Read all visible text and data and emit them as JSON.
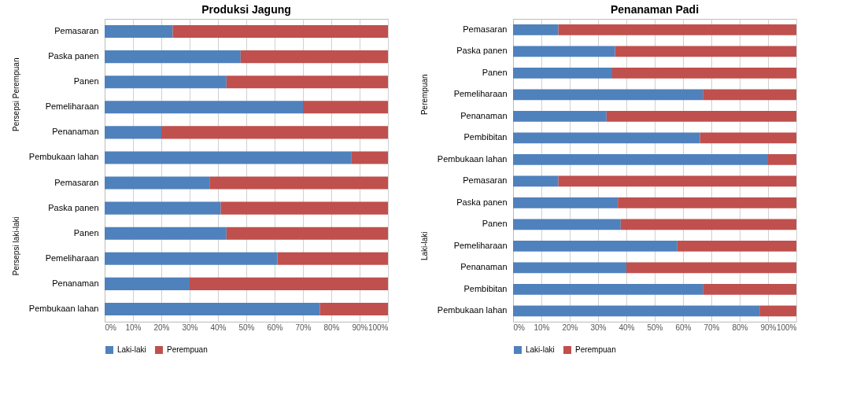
{
  "chart_data": [
    {
      "type": "bar",
      "title": "Produksi Jagung",
      "orientation": "horizontal",
      "stacked": true,
      "categories": [
        "Pemasaran",
        "Paska panen",
        "Panen",
        "Pemeliharaan",
        "Penanaman",
        "Pembukaan lahan",
        "Pemasaran",
        "Paska panen",
        "Panen",
        "Pemeliharaan",
        "Penanaman",
        "Pembukaan lahan"
      ],
      "annotations": [
        "Persepsi Perempuan",
        "Persepsi laki-laki"
      ],
      "series": [
        {
          "name": "Laki-laki",
          "color": "#4f81bd",
          "values": [
            24,
            48,
            43,
            70,
            20,
            87,
            37,
            41,
            43,
            61,
            30,
            76
          ]
        },
        {
          "name": "Perempuan",
          "color": "#c0504d",
          "values": [
            76,
            52,
            57,
            30,
            80,
            13,
            63,
            59,
            57,
            39,
            70,
            24
          ]
        }
      ],
      "xlim": [
        0,
        100
      ],
      "xticks": [
        {
          "value": 0,
          "label": "0%"
        },
        {
          "value": 10,
          "label": "10%"
        },
        {
          "value": 20,
          "label": "20%"
        },
        {
          "value": 30,
          "label": "30%"
        },
        {
          "value": 40,
          "label": "40%"
        },
        {
          "value": 50,
          "label": "50%"
        },
        {
          "value": 60,
          "label": "60%"
        },
        {
          "value": 70,
          "label": "70%"
        },
        {
          "value": 80,
          "label": "80%"
        },
        {
          "value": 90,
          "label": "90%"
        },
        {
          "value": 100,
          "label": "100%"
        }
      ],
      "grid": "x",
      "legend": "bottom"
    },
    {
      "type": "bar",
      "title": "Penanaman Padi",
      "orientation": "horizontal",
      "stacked": true,
      "categories": [
        "Pemasaran",
        "Paska panen",
        "Panen",
        "Pemeliharaan",
        "Penanaman",
        "Pembibitan",
        "Pembukaan lahan",
        "Pemasaran",
        "Paska panen",
        "Panen",
        "Pemeliharaan",
        "Penanaman",
        "Pembibitan",
        "Pembukaan lahan"
      ],
      "annotations": [
        "Perempuan",
        "Laki-laki"
      ],
      "series": [
        {
          "name": "Laki-laki",
          "color": "#4f81bd",
          "values": [
            16,
            36,
            35,
            67,
            33,
            66,
            90,
            16,
            37,
            38,
            58,
            40,
            67,
            87
          ]
        },
        {
          "name": "Perempuan",
          "color": "#c0504d",
          "values": [
            84,
            64,
            65,
            33,
            67,
            34,
            10,
            84,
            63,
            62,
            42,
            60,
            33,
            13
          ]
        }
      ],
      "xlim": [
        0,
        100
      ],
      "xticks": [
        {
          "value": 0,
          "label": "0%"
        },
        {
          "value": 10,
          "label": "10%"
        },
        {
          "value": 20,
          "label": "20%"
        },
        {
          "value": 30,
          "label": "30%"
        },
        {
          "value": 40,
          "label": "40%"
        },
        {
          "value": 50,
          "label": "50%"
        },
        {
          "value": 60,
          "label": "60%"
        },
        {
          "value": 70,
          "label": "70%"
        },
        {
          "value": 80,
          "label": "80%"
        },
        {
          "value": 90,
          "label": "90%"
        },
        {
          "value": 100,
          "label": "100%"
        }
      ],
      "grid": "x",
      "legend": "bottom"
    }
  ]
}
